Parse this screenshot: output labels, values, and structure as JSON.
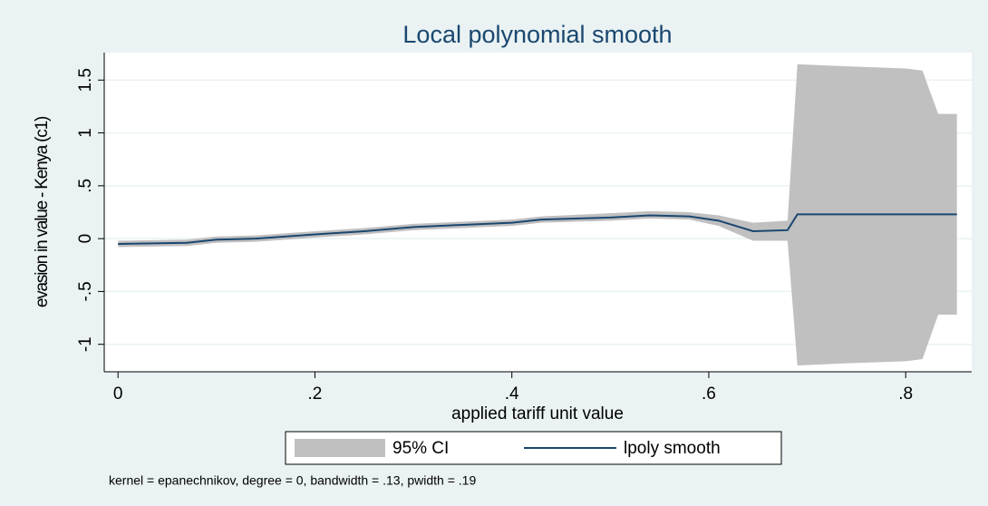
{
  "chart_data": {
    "type": "line",
    "title": "Local polynomial smooth",
    "x_label": "applied tariff unit value",
    "y_label": "evasion in value - Kenya (c1)",
    "note": "kernel = epanechnikov, degree = 0, bandwidth = .13, pwidth = .19",
    "x": [
      0,
      0.07,
      0.1,
      0.14,
      0.2,
      0.25,
      0.3,
      0.35,
      0.4,
      0.43,
      0.5,
      0.54,
      0.58,
      0.61,
      0.645,
      0.68,
      0.69,
      0.74,
      0.8,
      0.817,
      0.833,
      0.852
    ],
    "series": [
      {
        "name": "95% CI",
        "color": "#c0c0c0",
        "lower": [
          -0.08,
          -0.07,
          -0.04,
          -0.03,
          0.01,
          0.04,
          0.08,
          0.1,
          0.12,
          0.15,
          0.17,
          0.19,
          0.18,
          0.12,
          -0.02,
          -0.02,
          -1.2,
          -1.18,
          -1.16,
          -1.14,
          -0.72,
          -0.72
        ],
        "upper": [
          -0.02,
          -0.01,
          0.02,
          0.03,
          0.07,
          0.1,
          0.14,
          0.16,
          0.18,
          0.21,
          0.24,
          0.26,
          0.25,
          0.22,
          0.15,
          0.17,
          1.65,
          1.63,
          1.61,
          1.59,
          1.18,
          1.18
        ]
      },
      {
        "name": "lpoly smooth",
        "color": "#1a476f",
        "values": [
          -0.05,
          -0.04,
          -0.01,
          0.0,
          0.04,
          0.07,
          0.11,
          0.13,
          0.15,
          0.18,
          0.2,
          0.22,
          0.21,
          0.17,
          0.07,
          0.08,
          0.23,
          0.23,
          0.23,
          0.23,
          0.23,
          0.23
        ]
      }
    ],
    "xlim": [
      -0.014,
      0.867
    ],
    "ylim": [
      -1.26,
      1.76
    ],
    "xticks": [
      0,
      {
        "value": 0.2,
        "label": ".2"
      },
      {
        "value": 0.4,
        "label": ".4"
      },
      {
        "value": 0.6,
        "label": ".6"
      },
      {
        "value": 0.8,
        "label": ".8"
      }
    ],
    "yticks": [
      -1,
      {
        "value": -0.5,
        "label": "-.5"
      },
      0,
      {
        "value": 0.5,
        "label": ".5"
      },
      1,
      1.5
    ],
    "grid": true
  }
}
